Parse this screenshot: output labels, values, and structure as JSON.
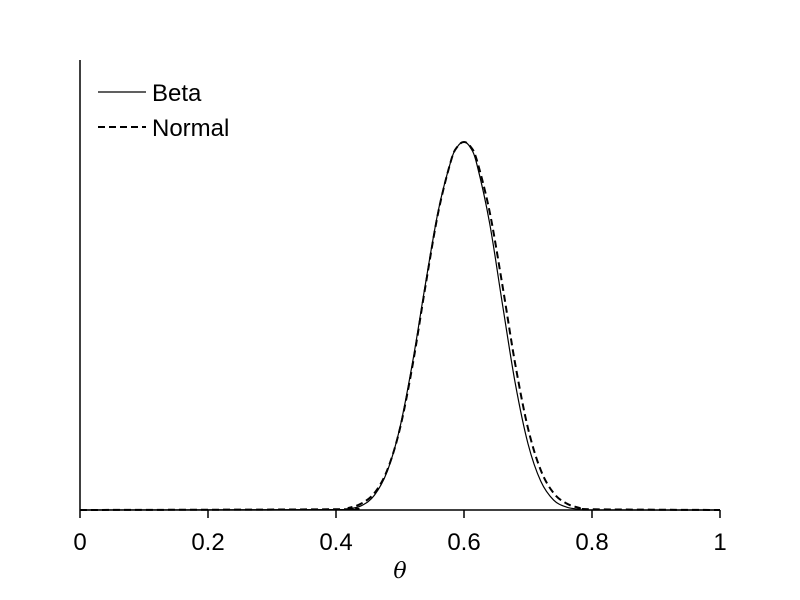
{
  "chart_data": {
    "type": "line",
    "title": "",
    "xlabel": "θ",
    "ylabel": "",
    "xlim": [
      0,
      1
    ],
    "ylim": [
      0,
      1.05
    ],
    "x_ticks": [
      "0",
      "0.2",
      "0.4",
      "0.6",
      "0.8",
      "1"
    ],
    "grid": false,
    "legend_position": "top-left",
    "series": [
      {
        "name": "Beta",
        "style": "solid",
        "color": "#000000",
        "x": [
          0.0,
          0.4,
          0.42,
          0.44,
          0.46,
          0.48,
          0.5,
          0.52,
          0.54,
          0.56,
          0.58,
          0.59,
          0.6,
          0.61,
          0.62,
          0.64,
          0.66,
          0.68,
          0.7,
          0.72,
          0.74,
          0.76,
          0.78,
          0.8,
          1.0
        ],
        "y": [
          0.0,
          0.001,
          0.003,
          0.012,
          0.04,
          0.105,
          0.225,
          0.405,
          0.617,
          0.815,
          0.951,
          0.988,
          1.0,
          0.985,
          0.94,
          0.78,
          0.56,
          0.345,
          0.18,
          0.078,
          0.027,
          0.008,
          0.002,
          0.0,
          0.0
        ]
      },
      {
        "name": "Normal",
        "style": "dashed",
        "color": "#000000",
        "x": [
          0.0,
          0.4,
          0.42,
          0.44,
          0.46,
          0.48,
          0.5,
          0.52,
          0.54,
          0.56,
          0.58,
          0.59,
          0.6,
          0.61,
          0.62,
          0.64,
          0.66,
          0.68,
          0.7,
          0.72,
          0.74,
          0.76,
          0.78,
          0.8,
          1.0
        ],
        "y": [
          0.0,
          0.002,
          0.006,
          0.018,
          0.046,
          0.108,
          0.222,
          0.397,
          0.611,
          0.811,
          0.951,
          0.988,
          1.0,
          0.988,
          0.951,
          0.811,
          0.611,
          0.397,
          0.222,
          0.108,
          0.046,
          0.018,
          0.006,
          0.002,
          0.0
        ]
      }
    ]
  }
}
